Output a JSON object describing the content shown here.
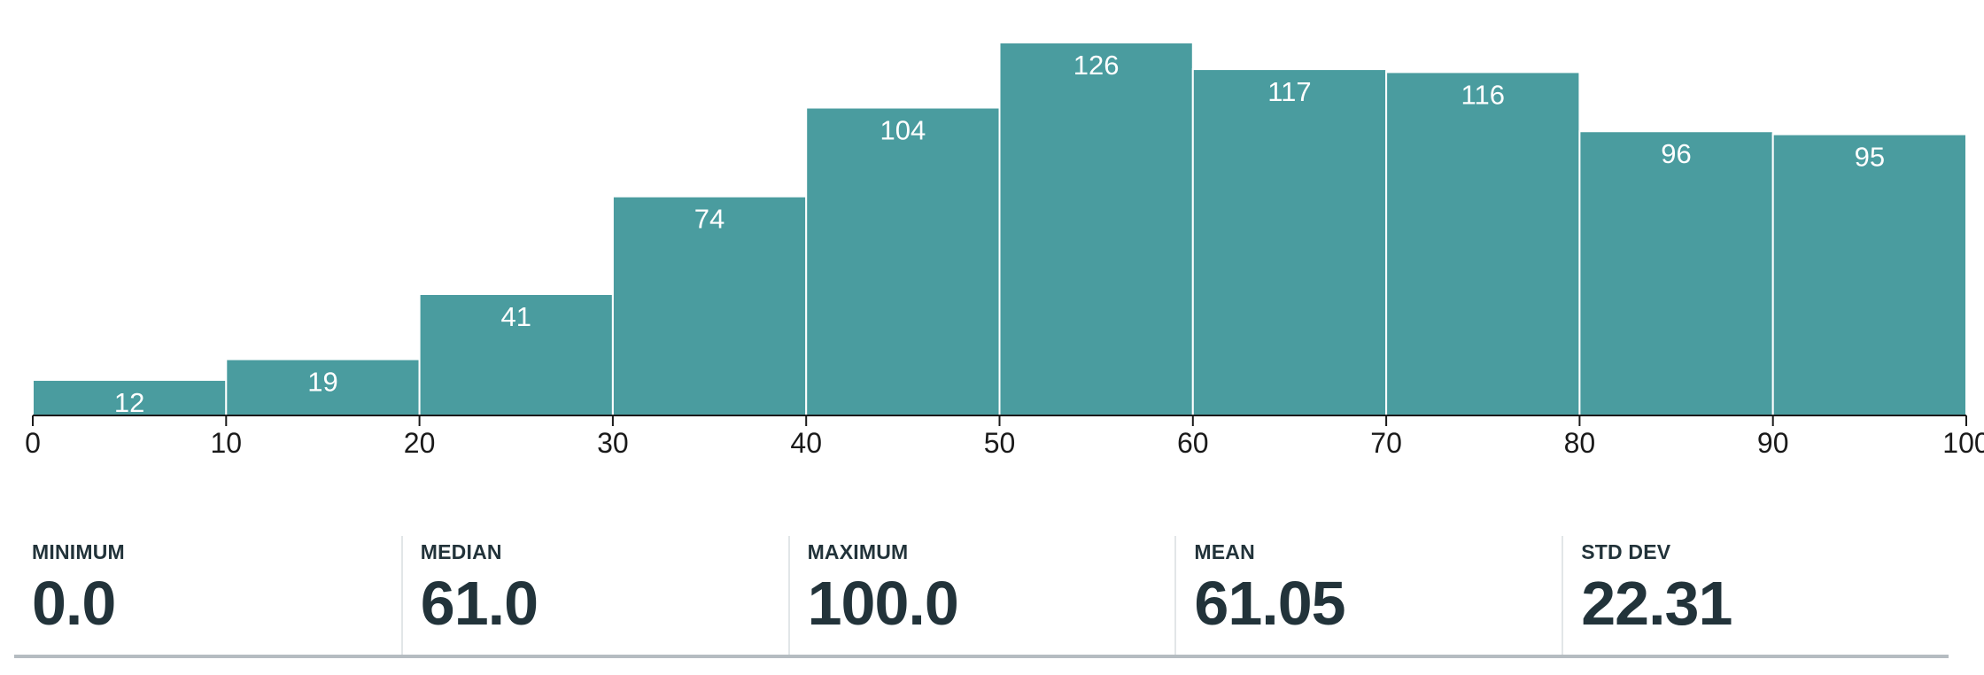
{
  "chart_data": {
    "type": "bar",
    "subtype": "histogram",
    "bins": [
      {
        "start": 0,
        "end": 10,
        "count": 12
      },
      {
        "start": 10,
        "end": 20,
        "count": 19
      },
      {
        "start": 20,
        "end": 30,
        "count": 41
      },
      {
        "start": 30,
        "end": 40,
        "count": 74
      },
      {
        "start": 40,
        "end": 50,
        "count": 104
      },
      {
        "start": 50,
        "end": 60,
        "count": 126
      },
      {
        "start": 60,
        "end": 70,
        "count": 117
      },
      {
        "start": 70,
        "end": 80,
        "count": 116
      },
      {
        "start": 80,
        "end": 90,
        "count": 96
      },
      {
        "start": 90,
        "end": 100,
        "count": 95
      }
    ],
    "x_ticks": [
      "0",
      "10",
      "20",
      "30",
      "40",
      "50",
      "60",
      "70",
      "80",
      "90",
      "100"
    ],
    "xlim": [
      0,
      100
    ],
    "ylim": [
      0,
      126
    ],
    "bar_color": "#4a9c9f",
    "data_labels": true,
    "grid": false,
    "title": "",
    "xlabel": "",
    "ylabel": ""
  },
  "stats": [
    {
      "label": "MINIMUM",
      "value": "0.0"
    },
    {
      "label": "MEDIAN",
      "value": "61.0"
    },
    {
      "label": "MAXIMUM",
      "value": "100.0"
    },
    {
      "label": "MEAN",
      "value": "61.05"
    },
    {
      "label": "STD DEV",
      "value": "22.31"
    }
  ]
}
